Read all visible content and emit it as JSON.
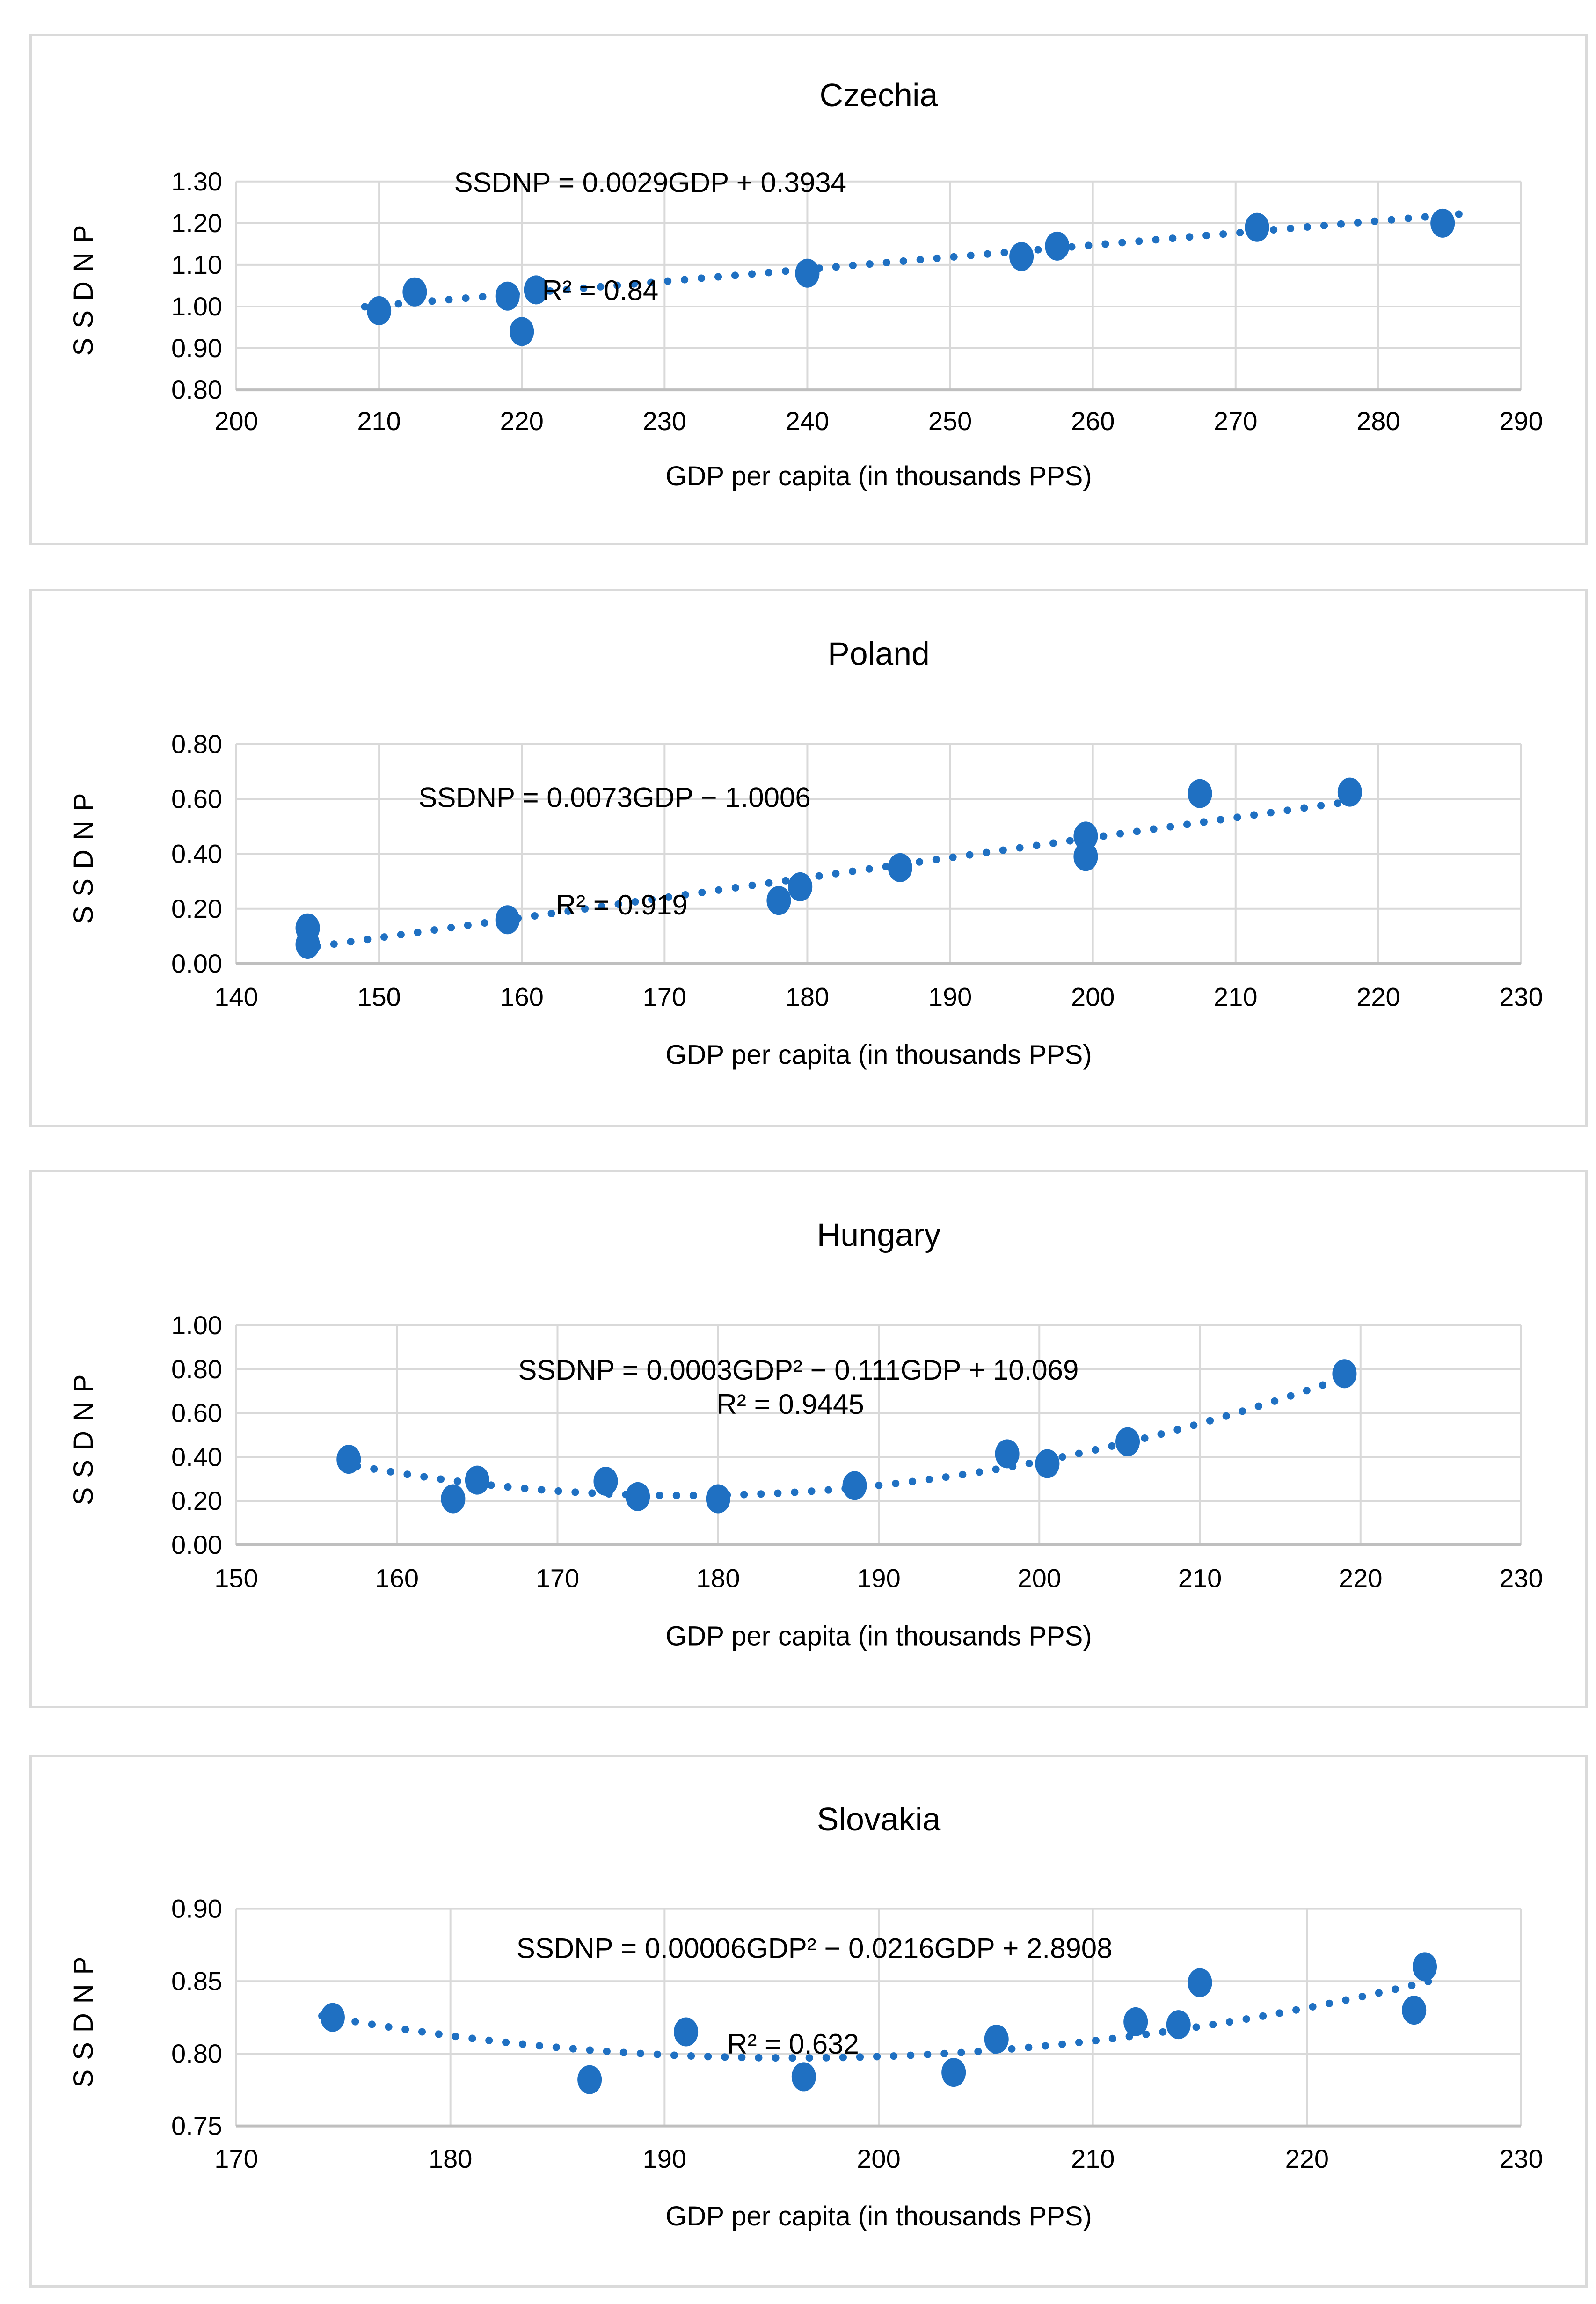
{
  "figure": {
    "description_title": "",
    "background": "#ffffff"
  },
  "styles": {
    "marker_color": "#1F70C2",
    "trend_color": "#1F70C2",
    "grid_color": "#D9D9D9",
    "axis_line_color": "#BFBFBF",
    "panel_border_color": "#DADADA",
    "text_color": "#000000"
  },
  "chart_data": [
    {
      "type": "scatter",
      "title": "Czechia",
      "xlabel": "GDP per capita (in thousands PPS)",
      "ylabel": "SSDNP",
      "xlim": [
        200,
        290
      ],
      "xstep": 10,
      "ylim": [
        0.8,
        1.3
      ],
      "ystep": 0.1,
      "y_decimals": 2,
      "grid": true,
      "equation": "SSDNP = 0.0029GDP + 0.3934",
      "r_squared": "R² = 0.84",
      "equation_pos": [
        229,
        1.297
      ],
      "r2_pos": [
        225.5,
        1.038
      ],
      "points": [
        [
          210,
          0.99
        ],
        [
          212.5,
          1.035
        ],
        [
          219,
          1.025
        ],
        [
          221,
          1.04
        ],
        [
          220,
          0.94
        ],
        [
          240,
          1.08
        ],
        [
          255,
          1.12
        ],
        [
          257.5,
          1.145
        ],
        [
          271.5,
          1.19
        ],
        [
          284.5,
          1.2
        ]
      ],
      "trend": {
        "type": "linear",
        "slope": 0.0029,
        "intercept": 0.3934,
        "x_range": [
          209,
          286
        ]
      }
    },
    {
      "type": "scatter",
      "title": "Poland",
      "xlabel": "GDP per capita (in thousands PPS)",
      "ylabel": "SSDNP",
      "xlim": [
        140,
        230
      ],
      "xstep": 10,
      "ylim": [
        0.0,
        0.8
      ],
      "ystep": 0.2,
      "y_decimals": 2,
      "grid": true,
      "equation": "SSDNP = 0.0073GDP − 1.0006",
      "r_squared": "R² = 0.919",
      "equation_pos": [
        166.5,
        0.605
      ],
      "r2_pos": [
        167,
        0.213
      ],
      "points": [
        [
          145,
          0.13
        ],
        [
          145,
          0.07
        ],
        [
          159,
          0.16
        ],
        [
          178,
          0.23
        ],
        [
          179.5,
          0.28
        ],
        [
          186.5,
          0.35
        ],
        [
          199.5,
          0.465
        ],
        [
          199.5,
          0.39
        ],
        [
          207.5,
          0.62
        ],
        [
          218,
          0.625
        ]
      ],
      "trend": {
        "type": "linear",
        "slope": 0.0073,
        "intercept": -1.0006,
        "x_range": [
          144.5,
          218.5
        ]
      }
    },
    {
      "type": "scatter",
      "title": "Hungary",
      "xlabel": "GDP per capita (in thousands PPS)",
      "ylabel": "SSDNP",
      "xlim": [
        150,
        230
      ],
      "xstep": 10,
      "ylim": [
        0.0,
        1.0
      ],
      "ystep": 0.2,
      "y_decimals": 2,
      "grid": true,
      "equation": "SSDNP = 0.0003GDP² − 0.111GDP + 10.069",
      "r_squared": "R² = 0.9445",
      "equation_pos": [
        185,
        0.795
      ],
      "r2_pos": [
        184.5,
        0.64
      ],
      "points": [
        [
          157,
          0.39
        ],
        [
          163.5,
          0.21
        ],
        [
          165,
          0.295
        ],
        [
          173,
          0.29
        ],
        [
          175,
          0.22
        ],
        [
          180,
          0.21
        ],
        [
          188.5,
          0.27
        ],
        [
          198,
          0.415
        ],
        [
          200.5,
          0.37
        ],
        [
          205.5,
          0.47
        ],
        [
          219,
          0.78
        ]
      ],
      "trend": {
        "type": "quadratic",
        "a": 0.00032,
        "h": 178,
        "k": 0.225,
        "x_range": [
          156.5,
          219.5
        ]
      }
    },
    {
      "type": "scatter",
      "title": "Slovakia",
      "xlabel": "GDP per capita (in thousands PPS)",
      "ylabel": "SSDNP",
      "xlim": [
        170,
        230
      ],
      "xstep": 10,
      "ylim": [
        0.75,
        0.9
      ],
      "ystep": 0.05,
      "y_decimals": 2,
      "grid": true,
      "equation": "SSDNP = 0.00006GDP² − 0.0216GDP + 2.8908",
      "r_squared": "R² = 0.632",
      "equation_pos": [
        197,
        0.8725
      ],
      "r2_pos": [
        196,
        0.8065
      ],
      "points": [
        [
          174.5,
          0.825
        ],
        [
          186.5,
          0.782
        ],
        [
          191,
          0.815
        ],
        [
          196.5,
          0.784
        ],
        [
          203.5,
          0.787
        ],
        [
          205.5,
          0.81
        ],
        [
          212,
          0.822
        ],
        [
          214,
          0.82
        ],
        [
          215,
          0.849
        ],
        [
          225,
          0.83
        ],
        [
          225.5,
          0.86
        ]
      ],
      "trend": {
        "type": "quadratic",
        "a": 6e-05,
        "h": 196,
        "k": 0.797,
        "x_range": [
          174,
          226
        ]
      }
    }
  ]
}
